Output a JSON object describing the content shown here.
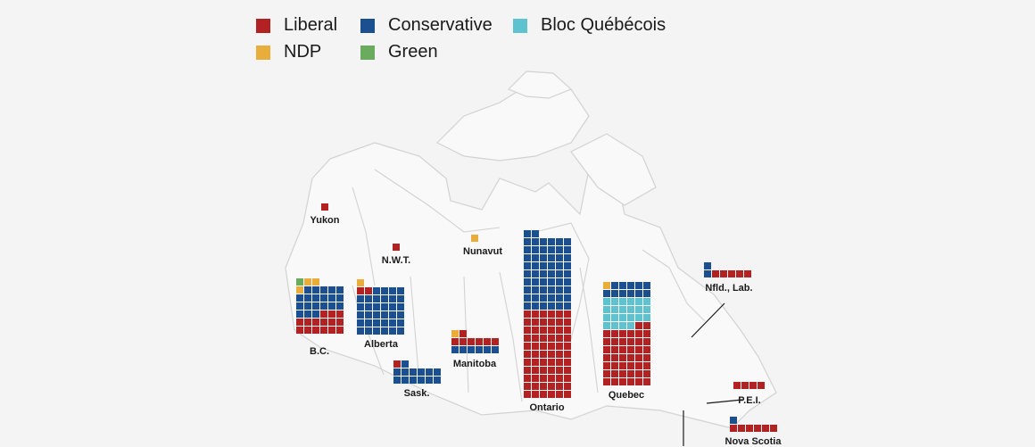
{
  "legend": {
    "colors": {
      "liberal": "#b22222",
      "conservative": "#1c4f8f",
      "bloc": "#5fc3cf",
      "ndp": "#e8ad3a",
      "green": "#6aab5e"
    },
    "items": [
      {
        "key": "liberal",
        "label": "Liberal"
      },
      {
        "key": "conservative",
        "label": "Conservative"
      },
      {
        "key": "bloc",
        "label": "Bloc Québécois"
      },
      {
        "key": "ndp",
        "label": "NDP"
      },
      {
        "key": "green",
        "label": "Green"
      }
    ]
  },
  "provinces": [
    {
      "id": "yukon",
      "label": "Yukon",
      "seats": {
        "liberal": 1
      }
    },
    {
      "id": "nwt",
      "label": "N.W.T.",
      "seats": {
        "liberal": 1
      }
    },
    {
      "id": "nunavut",
      "label": "Nunavut",
      "seats": {
        "ndp": 1
      }
    },
    {
      "id": "bc",
      "label": "B.C.",
      "seats": {
        "liberal": 15,
        "conservative": 20,
        "ndp": 3,
        "green": 1
      }
    },
    {
      "id": "alberta",
      "label": "Alberta",
      "seats": {
        "conservative": 34,
        "liberal": 2,
        "ndp": 1
      }
    },
    {
      "id": "sask",
      "label": "Sask.",
      "seats": {
        "conservative": 13,
        "liberal": 1
      }
    },
    {
      "id": "manitoba",
      "label": "Manitoba",
      "seats": {
        "liberal": 7,
        "conservative": 6,
        "ndp": 1
      }
    },
    {
      "id": "ontario",
      "label": "Ontario",
      "seats": {
        "liberal": 66,
        "conservative": 56
      }
    },
    {
      "id": "quebec",
      "label": "Quebec",
      "seats": {
        "liberal": 44,
        "bloc": 22,
        "conservative": 11,
        "ndp": 1
      }
    },
    {
      "id": "nfld",
      "label": "Nfld., Lab.",
      "seats": {
        "liberal": 5,
        "conservative": 2
      }
    },
    {
      "id": "pei",
      "label": "P.E.I.",
      "seats": {
        "liberal": 4
      }
    },
    {
      "id": "ns",
      "label": "Nova Scotia",
      "seats": {
        "liberal": 6,
        "conservative": 1
      }
    }
  ]
}
